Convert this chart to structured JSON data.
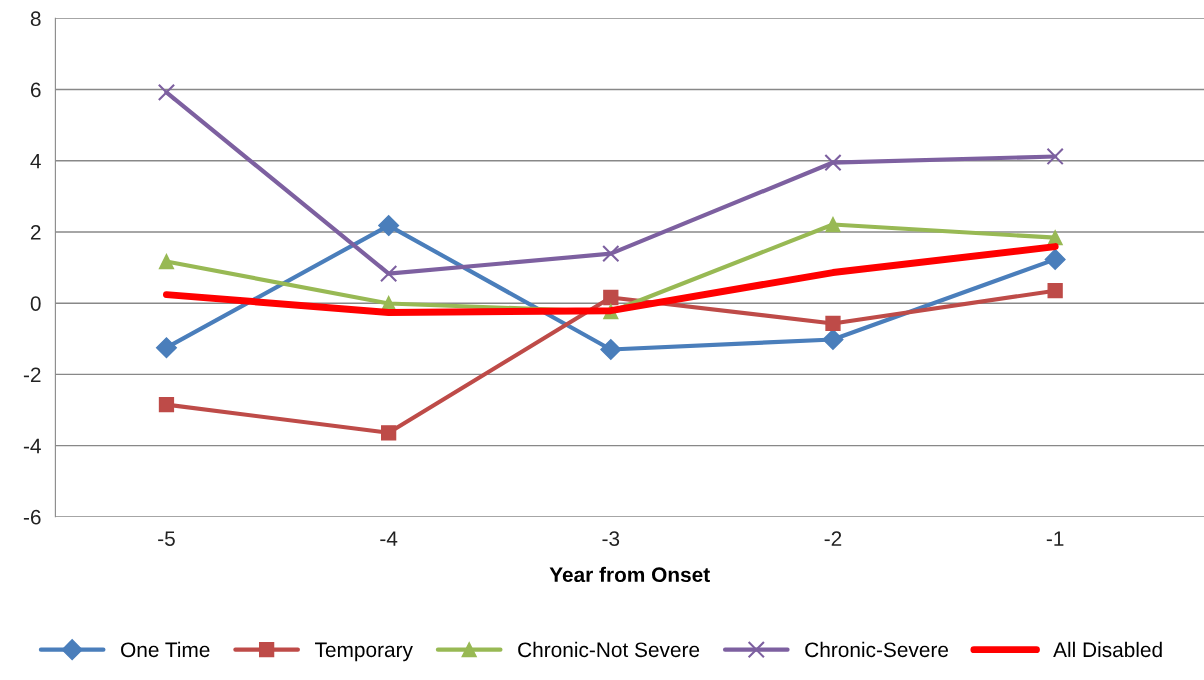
{
  "chart_data": {
    "type": "line",
    "xlabel": "Year from Onset",
    "categories": [
      "-5",
      "-4",
      "-3",
      "-2",
      "-1"
    ],
    "series": [
      {
        "name": "One Time",
        "color": "#4a7ebb",
        "marker": "diamond",
        "values": [
          -1.25,
          2.18,
          -1.3,
          -1.02,
          1.23
        ]
      },
      {
        "name": "Temporary",
        "color": "#be4b48",
        "marker": "square",
        "values": [
          -2.85,
          -3.64,
          0.16,
          -0.57,
          0.35
        ]
      },
      {
        "name": "Chronic-Not Severe",
        "color": "#98b954",
        "marker": "triangle",
        "values": [
          1.17,
          -0.01,
          -0.24,
          2.21,
          1.84
        ]
      },
      {
        "name": "Chronic-Severe",
        "color": "#7d60a0",
        "marker": "cross",
        "values": [
          5.92,
          0.83,
          1.39,
          3.95,
          4.12
        ]
      },
      {
        "name": "All Disabled",
        "color": "#ff0000",
        "marker": "none",
        "values": [
          0.24,
          -0.26,
          -0.21,
          0.86,
          1.59
        ]
      }
    ],
    "ylim": [
      -6,
      8
    ],
    "yticks": [
      -6,
      -4,
      -2,
      0,
      2,
      4,
      6,
      8
    ],
    "grid": "y",
    "legend": "bottom"
  }
}
